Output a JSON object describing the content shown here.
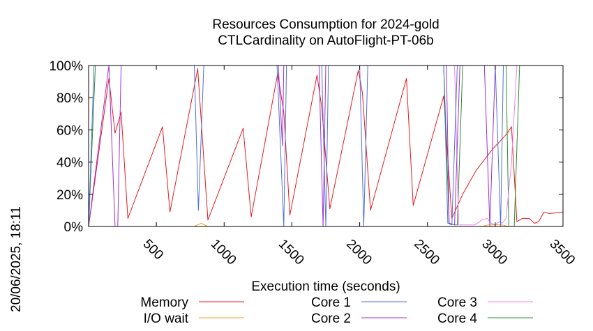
{
  "chart_data": {
    "type": "line",
    "title": "Resources Consumption for 2024-gold",
    "subtitle": "CTLCardinality on AutoFlight-PT-06b",
    "xlabel": "Execution time (seconds)",
    "ylabel": "",
    "side_label": "20/06/2025, 18:11",
    "xlim": [
      0,
      3500
    ],
    "ylim": [
      0,
      100
    ],
    "x_ticks": [
      500,
      1000,
      1500,
      2000,
      2500,
      3000,
      3500
    ],
    "y_ticks": [
      0,
      20,
      40,
      60,
      80,
      100
    ],
    "y_tick_labels": [
      "0%",
      "20%",
      "40%",
      "60%",
      "80%",
      "100%"
    ],
    "grid": false,
    "legend_position": "bottom",
    "series": [
      {
        "name": "Memory",
        "color": "#e41a1c",
        "points": [
          [
            0,
            0
          ],
          [
            150,
            92
          ],
          [
            195,
            58
          ],
          [
            240,
            71
          ],
          [
            290,
            5
          ],
          [
            545,
            62
          ],
          [
            600,
            9
          ],
          [
            805,
            98
          ],
          [
            880,
            4
          ],
          [
            1140,
            61
          ],
          [
            1200,
            6
          ],
          [
            1395,
            95
          ],
          [
            1440,
            71
          ],
          [
            1485,
            7
          ],
          [
            1685,
            94
          ],
          [
            1720,
            74
          ],
          [
            1780,
            11
          ],
          [
            1990,
            97
          ],
          [
            2020,
            83
          ],
          [
            2080,
            10
          ],
          [
            2345,
            92
          ],
          [
            2395,
            13
          ],
          [
            2620,
            81
          ],
          [
            2680,
            5
          ],
          [
            2760,
            20
          ],
          [
            2860,
            35
          ],
          [
            2980,
            48
          ],
          [
            3080,
            57
          ],
          [
            3120,
            62
          ],
          [
            3160,
            3
          ],
          [
            3200,
            5
          ],
          [
            3250,
            5
          ],
          [
            3290,
            2
          ],
          [
            3320,
            3
          ],
          [
            3360,
            9
          ],
          [
            3400,
            8
          ],
          [
            3500,
            9
          ]
        ]
      },
      {
        "name": "I/O wait",
        "color": "#f0a020",
        "points": [
          [
            0,
            0
          ],
          [
            780,
            0
          ],
          [
            830,
            2
          ],
          [
            880,
            0
          ],
          [
            2900,
            0
          ],
          [
            2950,
            1
          ],
          [
            3050,
            1
          ],
          [
            3100,
            0
          ],
          [
            3500,
            0
          ]
        ]
      },
      {
        "name": "Core 1",
        "color": "#4f6fdc",
        "points": [
          [
            0,
            0
          ],
          [
            40,
            100
          ],
          [
            780,
            100
          ],
          [
            810,
            10
          ],
          [
            850,
            100
          ],
          [
            1390,
            100
          ],
          [
            1440,
            0
          ],
          [
            1460,
            100
          ],
          [
            1720,
            100
          ],
          [
            1750,
            0
          ],
          [
            1770,
            100
          ],
          [
            2000,
            100
          ],
          [
            2030,
            0
          ],
          [
            2060,
            100
          ],
          [
            2620,
            100
          ],
          [
            2650,
            2
          ],
          [
            2680,
            1
          ],
          [
            2720,
            100
          ],
          [
            2760,
            100
          ],
          [
            3000,
            100
          ],
          [
            3040,
            0
          ],
          [
            3060,
            100
          ],
          [
            3500,
            100
          ]
        ]
      },
      {
        "name": "Core 2",
        "color": "#9b30d0",
        "points": [
          [
            0,
            0
          ],
          [
            150,
            100
          ],
          [
            195,
            0
          ],
          [
            215,
            0
          ],
          [
            240,
            100
          ],
          [
            800,
            100
          ],
          [
            830,
            100
          ],
          [
            1400,
            100
          ],
          [
            1430,
            50
          ],
          [
            1440,
            100
          ],
          [
            1700,
            100
          ],
          [
            1730,
            0
          ],
          [
            1750,
            100
          ],
          [
            1990,
            100
          ],
          [
            2020,
            100
          ],
          [
            2640,
            100
          ],
          [
            2660,
            2
          ],
          [
            2700,
            1
          ],
          [
            2740,
            100
          ],
          [
            2920,
            100
          ],
          [
            2960,
            0
          ],
          [
            3000,
            100
          ],
          [
            3500,
            100
          ]
        ]
      },
      {
        "name": "Core 3",
        "color": "#ee82ee",
        "points": [
          [
            2660,
            100
          ],
          [
            2700,
            100
          ],
          [
            2730,
            1
          ],
          [
            2780,
            1
          ],
          [
            2850,
            1
          ],
          [
            2900,
            4
          ],
          [
            2940,
            5
          ],
          [
            2970,
            2
          ],
          [
            3000,
            1
          ],
          [
            3030,
            3
          ],
          [
            3050,
            2
          ],
          [
            3080,
            5
          ],
          [
            3120,
            40
          ],
          [
            3160,
            100
          ],
          [
            3500,
            100
          ]
        ]
      },
      {
        "name": "Core 4",
        "color": "#2e8b2e",
        "points": [
          [
            0,
            0
          ],
          [
            50,
            100
          ],
          [
            2620,
            100
          ],
          [
            2660,
            2
          ],
          [
            2700,
            1
          ],
          [
            2720,
            1
          ],
          [
            2760,
            100
          ],
          [
            3080,
            100
          ],
          [
            3100,
            0
          ],
          [
            3140,
            0
          ],
          [
            3180,
            100
          ],
          [
            3500,
            100
          ]
        ]
      }
    ]
  }
}
